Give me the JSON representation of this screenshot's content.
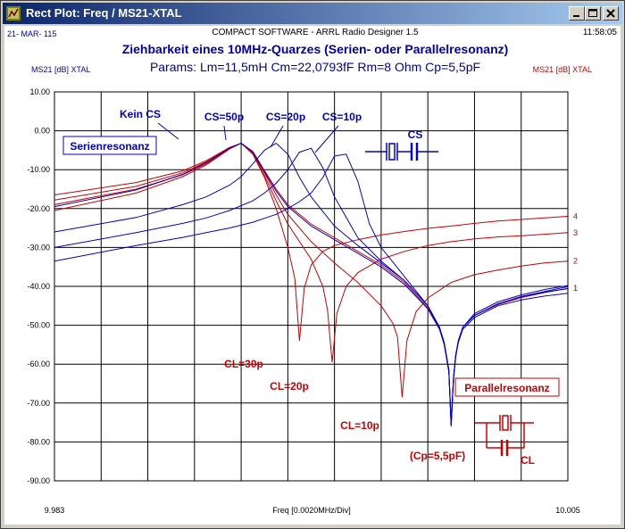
{
  "window": {
    "title": "Rect Plot: Freq / MS21-XTAL"
  },
  "header": {
    "date": "21- MAR- 115",
    "software": "COMPACT SOFTWARE - ARRL Radio Designer 1.5",
    "time": "11:58:05",
    "left_series_label": "MS21 [dB] XTAL",
    "right_series_label": "MS21 [dB] XTAL"
  },
  "colors": {
    "blue": "#0000cc",
    "red": "#cc0000",
    "title_blue": "#0000aa"
  },
  "chart_data": {
    "type": "line",
    "title": "Ziehbarkeit eines 10MHz-Quarzes (Serien- oder Parallelresonanz)",
    "subtitle": "Params:  Lm=11,5mH  Cm=22,0793fF   Rm=8 Ohm   Cp=5,5pF",
    "xlabel": "Freq [0.0020MHz/Div]",
    "x_range": [
      9.983,
      10.005
    ],
    "x_tick_labels": [
      "9.983",
      "10.005"
    ],
    "ylim": [
      -90,
      10
    ],
    "y_ticks": [
      10,
      0,
      -10,
      -20,
      -30,
      -40,
      -50,
      -60,
      -70,
      -80,
      -90
    ],
    "y_tick_labels": [
      "10.00",
      "0.00",
      "-10.00",
      "-20.00",
      "-30.00",
      "-40.00",
      "-50.00",
      "-60.00",
      "-70.00",
      "-80.00",
      "-90.00"
    ],
    "grid": true,
    "blue_series": [
      {
        "x": [
          9.983,
          9.9865,
          9.9885,
          9.9895,
          9.9905,
          9.991,
          9.9915,
          9.992,
          9.9925,
          9.993,
          9.994,
          9.995,
          9.996,
          9.997,
          9.998,
          9.999,
          9.9995,
          9.9997,
          9.9999,
          10.0,
          10.0001,
          10.0002,
          10.0003,
          10.0005,
          10.001,
          10.002,
          10.003,
          10.004,
          10.005
        ],
        "y": [
          -19.5,
          -15.2,
          -11.2,
          -8.2,
          -4.5,
          -3.2,
          -5.5,
          -10.5,
          -15.5,
          -19.5,
          -24.5,
          -28.0,
          -31.5,
          -35.0,
          -39.5,
          -45.8,
          -51.0,
          -55.0,
          -62.0,
          -76.0,
          -64.0,
          -58.0,
          -54.5,
          -50.5,
          -47.5,
          -44.5,
          -42.6,
          -41.3,
          -40.1
        ]
      },
      {
        "x": [
          9.983,
          9.9865,
          9.9885,
          9.9895,
          9.9905,
          9.991,
          9.9915,
          9.992,
          9.9925,
          9.993,
          9.9935,
          9.994,
          9.995,
          9.996,
          9.997,
          9.998,
          9.999,
          9.9995,
          9.9997,
          9.9999,
          10.0,
          10.0001,
          10.0002,
          10.0003,
          10.0005,
          10.001,
          10.002,
          10.003,
          10.004,
          10.005
        ],
        "y": [
          -26.0,
          -22.3,
          -19.0,
          -17.0,
          -14.0,
          -11.8,
          -8.5,
          -5.0,
          -3.2,
          -6.0,
          -12.0,
          -17.0,
          -24.5,
          -29.5,
          -34.0,
          -38.5,
          -45.0,
          -50.5,
          -54.5,
          -61.5,
          -75.5,
          -63.5,
          -57.5,
          -54.0,
          -50.5,
          -47.0,
          -44.0,
          -42.2,
          -40.8,
          -39.8
        ]
      },
      {
        "x": [
          9.983,
          9.9865,
          9.9885,
          9.9895,
          9.9905,
          9.9915,
          9.992,
          9.9925,
          9.993,
          9.9935,
          9.994,
          9.9945,
          9.995,
          9.996,
          9.997,
          9.998,
          9.999,
          9.9995,
          9.9997,
          9.9999,
          10.0,
          10.0001,
          10.0002,
          10.0003,
          10.0005,
          10.001,
          10.002,
          10.003,
          10.004,
          10.005
        ],
        "y": [
          -30.0,
          -26.2,
          -23.8,
          -22.4,
          -20.5,
          -18.0,
          -16.0,
          -13.5,
          -10.0,
          -5.5,
          -4.5,
          -9.5,
          -17.0,
          -27.5,
          -33.5,
          -38.5,
          -45.0,
          -50.5,
          -54.5,
          -61.5,
          -75.5,
          -63.5,
          -57.5,
          -54.5,
          -50.5,
          -47.5,
          -44.5,
          -42.7,
          -41.5,
          -40.6
        ]
      },
      {
        "x": [
          9.983,
          9.9865,
          9.9885,
          9.9895,
          9.9905,
          9.9915,
          9.992,
          9.9925,
          9.993,
          9.9935,
          9.994,
          9.9945,
          9.995,
          9.9955,
          9.996,
          9.9965,
          9.997,
          9.998,
          9.999,
          9.9995,
          9.9997,
          9.9999,
          10.0,
          10.0001,
          10.0002,
          10.0003,
          10.0005,
          10.001,
          10.002,
          10.003,
          10.004,
          10.005
        ],
        "y": [
          -33.5,
          -29.5,
          -27.4,
          -26.2,
          -25.0,
          -23.5,
          -22.5,
          -21.5,
          -20.0,
          -18.2,
          -16.0,
          -12.0,
          -6.5,
          -6.0,
          -13.0,
          -24.0,
          -30.0,
          -37.5,
          -45.0,
          -50.5,
          -54.5,
          -61.5,
          -75.5,
          -63.5,
          -57.5,
          -54.5,
          -51.0,
          -48.0,
          -45.0,
          -43.5,
          -42.5,
          -41.8
        ]
      }
    ],
    "red_series": [
      {
        "label": "4",
        "x": [
          9.983,
          9.9865,
          9.9885,
          9.9895,
          9.9905,
          9.991,
          9.9915,
          9.992,
          9.9925,
          9.993,
          9.9933,
          9.9935,
          9.9937,
          9.994,
          9.9945,
          9.995,
          9.996,
          9.997,
          9.998,
          9.999,
          10.0,
          10.001,
          10.002,
          10.003,
          10.004,
          10.005
        ],
        "y": [
          -16.5,
          -13.3,
          -10.3,
          -7.7,
          -4.3,
          -3.2,
          -6.0,
          -12.0,
          -20.0,
          -30.0,
          -38.0,
          -54.0,
          -40.5,
          -34.5,
          -31.0,
          -29.5,
          -28.0,
          -26.8,
          -25.9,
          -25.1,
          -24.5,
          -23.8,
          -23.2,
          -22.8,
          -22.4,
          -22.0
        ]
      },
      {
        "label": "3",
        "x": [
          9.983,
          9.9865,
          9.9885,
          9.9895,
          9.9905,
          9.991,
          9.9915,
          9.992,
          9.9925,
          9.993,
          9.994,
          9.9945,
          9.9947,
          9.9949,
          9.9951,
          9.9955,
          9.996,
          9.997,
          9.998,
          9.999,
          10.0,
          10.001,
          10.002,
          10.003,
          10.004,
          10.005
        ],
        "y": [
          -17.8,
          -14.3,
          -10.8,
          -8.0,
          -4.4,
          -3.2,
          -5.8,
          -11.5,
          -18.0,
          -24.0,
          -33.0,
          -40.0,
          -46.0,
          -59.5,
          -47.0,
          -40.0,
          -36.5,
          -33.0,
          -31.0,
          -29.5,
          -28.5,
          -27.8,
          -27.3,
          -27.0,
          -26.6,
          -26.2
        ]
      },
      {
        "label": "2",
        "x": [
          9.983,
          9.9865,
          9.9885,
          9.9895,
          9.9905,
          9.991,
          9.9915,
          9.992,
          9.9925,
          9.993,
          9.994,
          9.995,
          9.996,
          9.9965,
          9.997,
          9.9975,
          9.9977,
          9.9979,
          9.9981,
          9.9985,
          9.999,
          10.0,
          10.001,
          10.002,
          10.003,
          10.004,
          10.005
        ],
        "y": [
          -19.0,
          -15.0,
          -11.3,
          -8.5,
          -4.6,
          -3.2,
          -5.5,
          -10.8,
          -16.5,
          -21.5,
          -28.5,
          -34.0,
          -39.0,
          -42.0,
          -45.0,
          -49.5,
          -53.0,
          -68.5,
          -54.0,
          -46.5,
          -43.0,
          -39.0,
          -37.0,
          -35.8,
          -34.8,
          -34.0,
          -33.5
        ]
      },
      {
        "label": "1",
        "x": [
          9.983,
          9.9865,
          9.9885,
          9.9895,
          9.9905,
          9.991,
          9.9915,
          9.992,
          9.9925,
          9.993,
          9.994,
          9.995,
          9.996,
          9.997,
          9.998,
          9.999,
          9.9995,
          9.9997,
          9.9999,
          10.0,
          10.0001,
          10.0002,
          10.0003,
          10.0005,
          10.001,
          10.002,
          10.003,
          10.004,
          10.005
        ],
        "y": [
          -20.5,
          -16.0,
          -11.8,
          -8.8,
          -4.7,
          -3.2,
          -5.3,
          -10.2,
          -15.0,
          -19.0,
          -24.0,
          -27.5,
          -31.0,
          -34.5,
          -39.0,
          -45.5,
          -50.8,
          -54.8,
          -61.8,
          -75.8,
          -63.8,
          -57.8,
          -54.3,
          -50.5,
          -47.5,
          -44.7,
          -42.9,
          -41.6,
          -40.5
        ]
      }
    ],
    "annotations": {
      "kein_cs": "Kein CS",
      "cs50": "CS=50p",
      "cs20": "CS=20p",
      "cs10": "CS=10p",
      "serienresonanz": "Serienresonanz",
      "cs_schematic": "CS",
      "cl30": "CL=30p",
      "cl20": "CL=20p",
      "cl10": "CL=10p",
      "parallelresonanz": "Parallelresonanz",
      "cp": "(Cp=5,5pF)",
      "cl_schematic": "CL"
    }
  }
}
